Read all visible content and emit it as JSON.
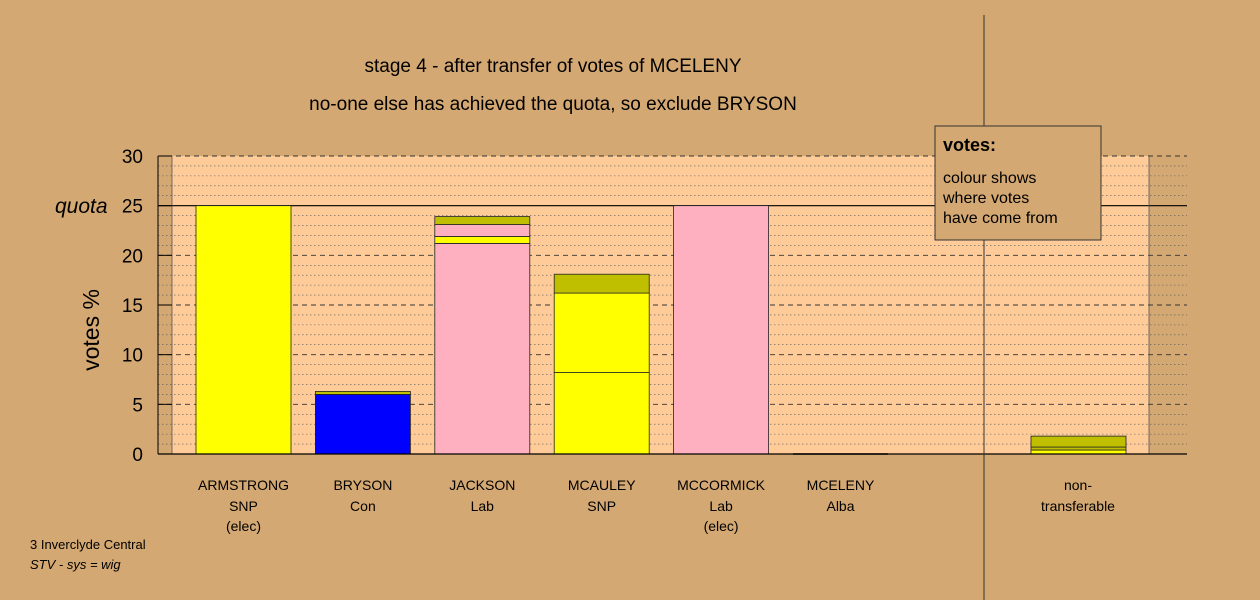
{
  "chart_data": {
    "type": "bar",
    "stacked": true,
    "title": "stage 4 - after transfer of votes of MCELENY",
    "subtitle": "no-one else has achieved the quota, so exclude BRYSON",
    "ylabel": "votes %",
    "ylim": [
      0,
      30
    ],
    "yticks": [
      "0",
      "5",
      "10",
      "15",
      "20",
      "25",
      "30"
    ],
    "quota_value": 25,
    "quota_label": "quota",
    "grid": true,
    "categories": [
      {
        "name": "ARMSTRONG",
        "party": "SNP",
        "status": "(elec)"
      },
      {
        "name": "BRYSON",
        "party": "Con",
        "status": ""
      },
      {
        "name": "JACKSON",
        "party": "Lab",
        "status": ""
      },
      {
        "name": "MCAULEY",
        "party": "SNP",
        "status": ""
      },
      {
        "name": "MCCORMICK",
        "party": "Lab",
        "status": "(elec)"
      },
      {
        "name": "MCELENY",
        "party": "Alba",
        "status": ""
      }
    ],
    "bars": [
      {
        "segments": [
          {
            "value": 25.0,
            "color": "#ffff00"
          }
        ]
      },
      {
        "segments": [
          {
            "value": 6.0,
            "color": "#0000ff"
          },
          {
            "value": 0.3,
            "color": "#bfbf00"
          }
        ]
      },
      {
        "segments": [
          {
            "value": 21.2,
            "color": "#ffb0c0"
          },
          {
            "value": 0.7,
            "color": "#ffff00"
          },
          {
            "value": 1.2,
            "color": "#ffb0c0"
          },
          {
            "value": 0.8,
            "color": "#bfbf00"
          }
        ]
      },
      {
        "segments": [
          {
            "value": 8.2,
            "color": "#ffff00"
          },
          {
            "value": 8.0,
            "color": "#ffff00"
          },
          {
            "value": 1.9,
            "color": "#bfbf00"
          }
        ]
      },
      {
        "segments": [
          {
            "value": 25.0,
            "color": "#ffb0c0"
          }
        ]
      },
      {
        "segments": []
      }
    ],
    "nontransferable": {
      "label_line1": "non-",
      "label_line2": "transferable",
      "segments": [
        {
          "value": 0.4,
          "color": "#ffff00"
        },
        {
          "value": 0.3,
          "color": "#bfbf00"
        },
        {
          "value": 1.1,
          "color": "#bfbf00"
        }
      ]
    },
    "legend": {
      "title": "votes:",
      "lines": [
        "colour shows",
        "where votes",
        "have come from"
      ],
      "placement": "top-right"
    },
    "footnote": {
      "line1": "3 Inverclyde Central",
      "line2": "STV - sys = wig"
    },
    "colors": {
      "background": "#d4a872",
      "plot_area": "#ffcc99"
    }
  }
}
